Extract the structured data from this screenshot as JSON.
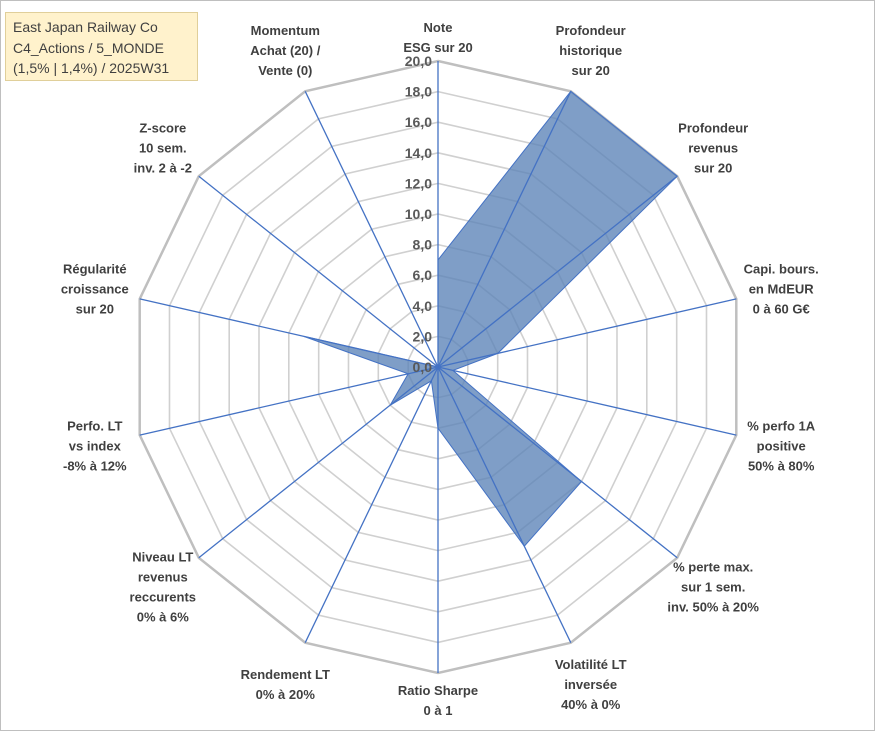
{
  "title_box": {
    "line1": "East Japan Railway Co",
    "line2": "C4_Actions / 5_MONDE",
    "line3": "(1,5% | 1,4%) / 2025W31"
  },
  "colors": {
    "fill": "#5b83b7",
    "stroke": "#4472c4",
    "grid": "#d0d0d0",
    "title_bg": "#fff2cc"
  },
  "chart_data": {
    "type": "radar",
    "title": "",
    "rmin": 0,
    "rmax": 20,
    "ticks": [
      "0,0",
      "2,0",
      "4,0",
      "6,0",
      "8,0",
      "10,0",
      "12,0",
      "14,0",
      "16,0",
      "18,0",
      "20,0"
    ],
    "categories": [
      [
        "Note",
        "ESG sur 20"
      ],
      [
        "Profondeur",
        "historique",
        "sur 20"
      ],
      [
        "Profondeur",
        "revenus",
        "sur 20"
      ],
      [
        "Capi. bours.",
        "en MdEUR",
        "0 à 60 G€"
      ],
      [
        "% perfo 1A",
        "positive",
        "50% à 80%"
      ],
      [
        "% perte max.",
        "sur 1 sem.",
        "inv. 50% à 20%"
      ],
      [
        "Volatilité LT",
        "inversée",
        "40% à 0%"
      ],
      [
        "Ratio Sharpe",
        "0 à 1"
      ],
      [
        "Rendement LT",
        "0% à 20%"
      ],
      [
        "Niveau LT",
        "revenus",
        "reccurents",
        "0% à 6%"
      ],
      [
        "Perfo. LT",
        "vs index",
        "-8% à 12%"
      ],
      [
        "Régularité",
        "croissance",
        "sur 20"
      ],
      [
        "Z-score",
        "10 sem.",
        "inv. 2 à -2"
      ],
      [
        "Momentum",
        "Achat (20) /",
        "Vente (0)"
      ]
    ],
    "values": [
      7,
      20,
      20,
      4,
      1,
      12,
      13,
      4,
      1,
      4,
      2,
      9,
      0,
      0
    ],
    "grid": true,
    "legend": "none"
  }
}
